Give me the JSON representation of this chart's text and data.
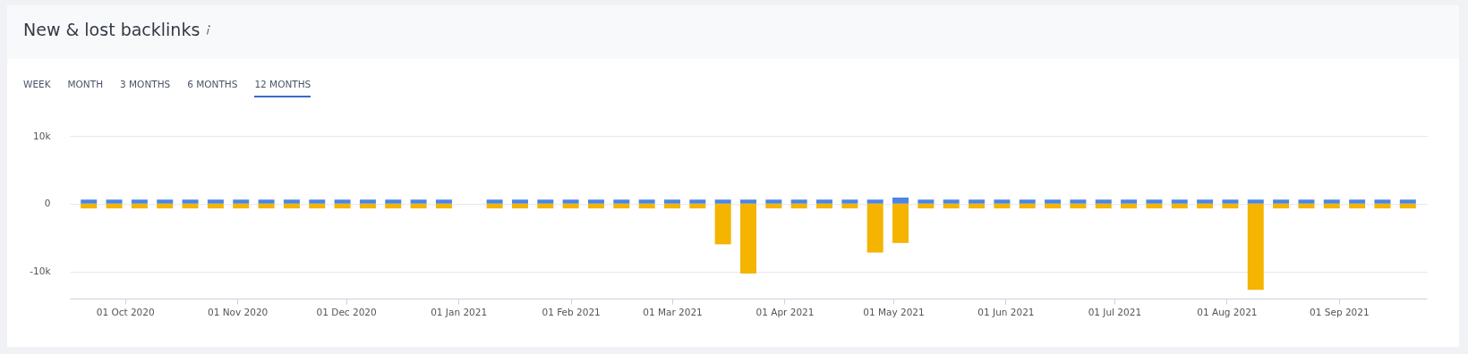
{
  "chart_data": {
    "type": "bar",
    "title": "New & lost backlinks",
    "annotations": [
      "WEEK",
      "MONTH",
      "3 MONTHS",
      "6 MONTHS",
      "12 MONTHS"
    ],
    "x": [
      "2020-09-21",
      "2020-09-28",
      "2020-10-05",
      "2020-10-12",
      "2020-10-19",
      "2020-10-26",
      "2020-11-02",
      "2020-11-09",
      "2020-11-16",
      "2020-11-23",
      "2020-11-30",
      "2020-12-07",
      "2020-12-14",
      "2020-12-21",
      "2020-12-28",
      "2021-01-04",
      "2021-01-11",
      "2021-01-18",
      "2021-01-25",
      "2021-02-01",
      "2021-02-08",
      "2021-02-15",
      "2021-02-22",
      "2021-03-01",
      "2021-03-08",
      "2021-03-15",
      "2021-03-22",
      "2021-03-29",
      "2021-04-05",
      "2021-04-12",
      "2021-04-19",
      "2021-04-26",
      "2021-05-03",
      "2021-05-10",
      "2021-05-17",
      "2021-05-24",
      "2021-05-31",
      "2021-06-07",
      "2021-06-14",
      "2021-06-21",
      "2021-06-28",
      "2021-07-05",
      "2021-07-12",
      "2021-07-19",
      "2021-07-26",
      "2021-08-02",
      "2021-08-09",
      "2021-08-16",
      "2021-08-23",
      "2021-08-30",
      "2021-09-06",
      "2021-09-13",
      "2021-09-20"
    ],
    "series": [
      {
        "color": "#4a86e8",
        "values": [
          600,
          600,
          600,
          600,
          600,
          600,
          600,
          600,
          600,
          600,
          600,
          600,
          600,
          600,
          600,
          null,
          600,
          600,
          600,
          600,
          600,
          600,
          600,
          600,
          600,
          600,
          600,
          600,
          600,
          600,
          600,
          600,
          900,
          600,
          600,
          600,
          600,
          600,
          600,
          600,
          600,
          600,
          600,
          600,
          600,
          600,
          600,
          600,
          600,
          600,
          600,
          600,
          600
        ]
      },
      {
        "color": "#f4b400",
        "values": [
          -700,
          -700,
          -700,
          -700,
          -700,
          -700,
          -700,
          -700,
          -700,
          -700,
          -700,
          -700,
          -700,
          -700,
          -700,
          null,
          -700,
          -700,
          -700,
          -700,
          -700,
          -700,
          -700,
          -700,
          -700,
          -6000,
          -10300,
          -700,
          -700,
          -700,
          -700,
          -7200,
          -5800,
          -700,
          -700,
          -700,
          -700,
          -700,
          -700,
          -700,
          -700,
          -700,
          -700,
          -700,
          -700,
          -700,
          -12700,
          -700,
          -700,
          -700,
          -700,
          -700,
          -700
        ]
      }
    ],
    "xlim": [
      "2020-09-17",
      "2021-09-24"
    ],
    "xticks": [
      {
        "value": "2020-10-01",
        "label": "01 Oct 2020"
      },
      {
        "value": "2020-11-01",
        "label": "01 Nov 2020"
      },
      {
        "value": "2020-12-01",
        "label": "01 Dec 2020"
      },
      {
        "value": "2021-01-01",
        "label": "01 Jan 2021"
      },
      {
        "value": "2021-02-01",
        "label": "01 Feb 2021"
      },
      {
        "value": "2021-03-01",
        "label": "01 Mar 2021"
      },
      {
        "value": "2021-04-01",
        "label": "01 Apr 2021"
      },
      {
        "value": "2021-05-01",
        "label": "01 May 2021"
      },
      {
        "value": "2021-06-01",
        "label": "01 Jun 2021"
      },
      {
        "value": "2021-07-01",
        "label": "01 Jul 2021"
      },
      {
        "value": "2021-08-01",
        "label": "01 Aug 2021"
      },
      {
        "value": "2021-09-01",
        "label": "01 Sep 2021"
      }
    ],
    "ylim": [
      -14000,
      10000
    ],
    "stacked": true,
    "yticks": [
      {
        "value": -10000,
        "label": "-10k"
      },
      {
        "value": 0,
        "label": "0"
      },
      {
        "value": 10000,
        "label": "10k"
      }
    ],
    "grid": "y"
  }
}
